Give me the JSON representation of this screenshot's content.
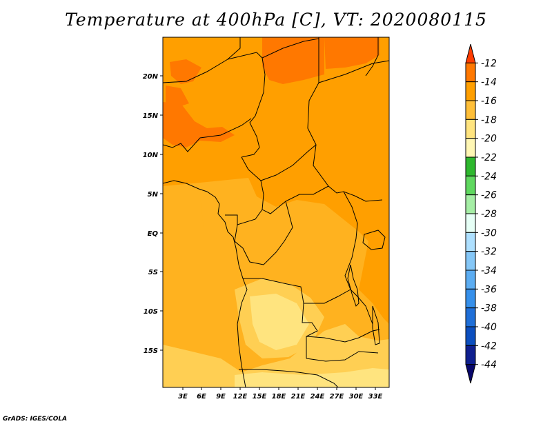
{
  "title": "Temperature at 400hPa [C], VT: 2020080115",
  "credit": "GrADS: IGES/COLA",
  "map": {
    "lon_labels": [
      "3E",
      "6E",
      "9E",
      "12E",
      "15E",
      "18E",
      "21E",
      "24E",
      "27E",
      "30E",
      "33E"
    ],
    "lat_labels": [
      "20N",
      "15N",
      "10N",
      "5N",
      "EQ",
      "5S",
      "10S",
      "15S"
    ],
    "background_color": "#ff9f00"
  },
  "colorbar": {
    "labels": [
      "-12",
      "-14",
      "-16",
      "-18",
      "-20",
      "-22",
      "-24",
      "-26",
      "-28",
      "-30",
      "-32",
      "-34",
      "-36",
      "-38",
      "-40",
      "-42",
      "-44"
    ],
    "colors": [
      "#ff3c00",
      "#ff7800",
      "#ff9f00",
      "#ffbf38",
      "#ffe47f",
      "#fff7b4",
      "#2eb82e",
      "#5fd85f",
      "#a5eea5",
      "#e6fff6",
      "#aee0ff",
      "#85c7f7",
      "#5cadf2",
      "#3690eb",
      "#1f6fd8",
      "#0c4fbf",
      "#0f1f8f",
      "#08076b"
    ]
  }
}
